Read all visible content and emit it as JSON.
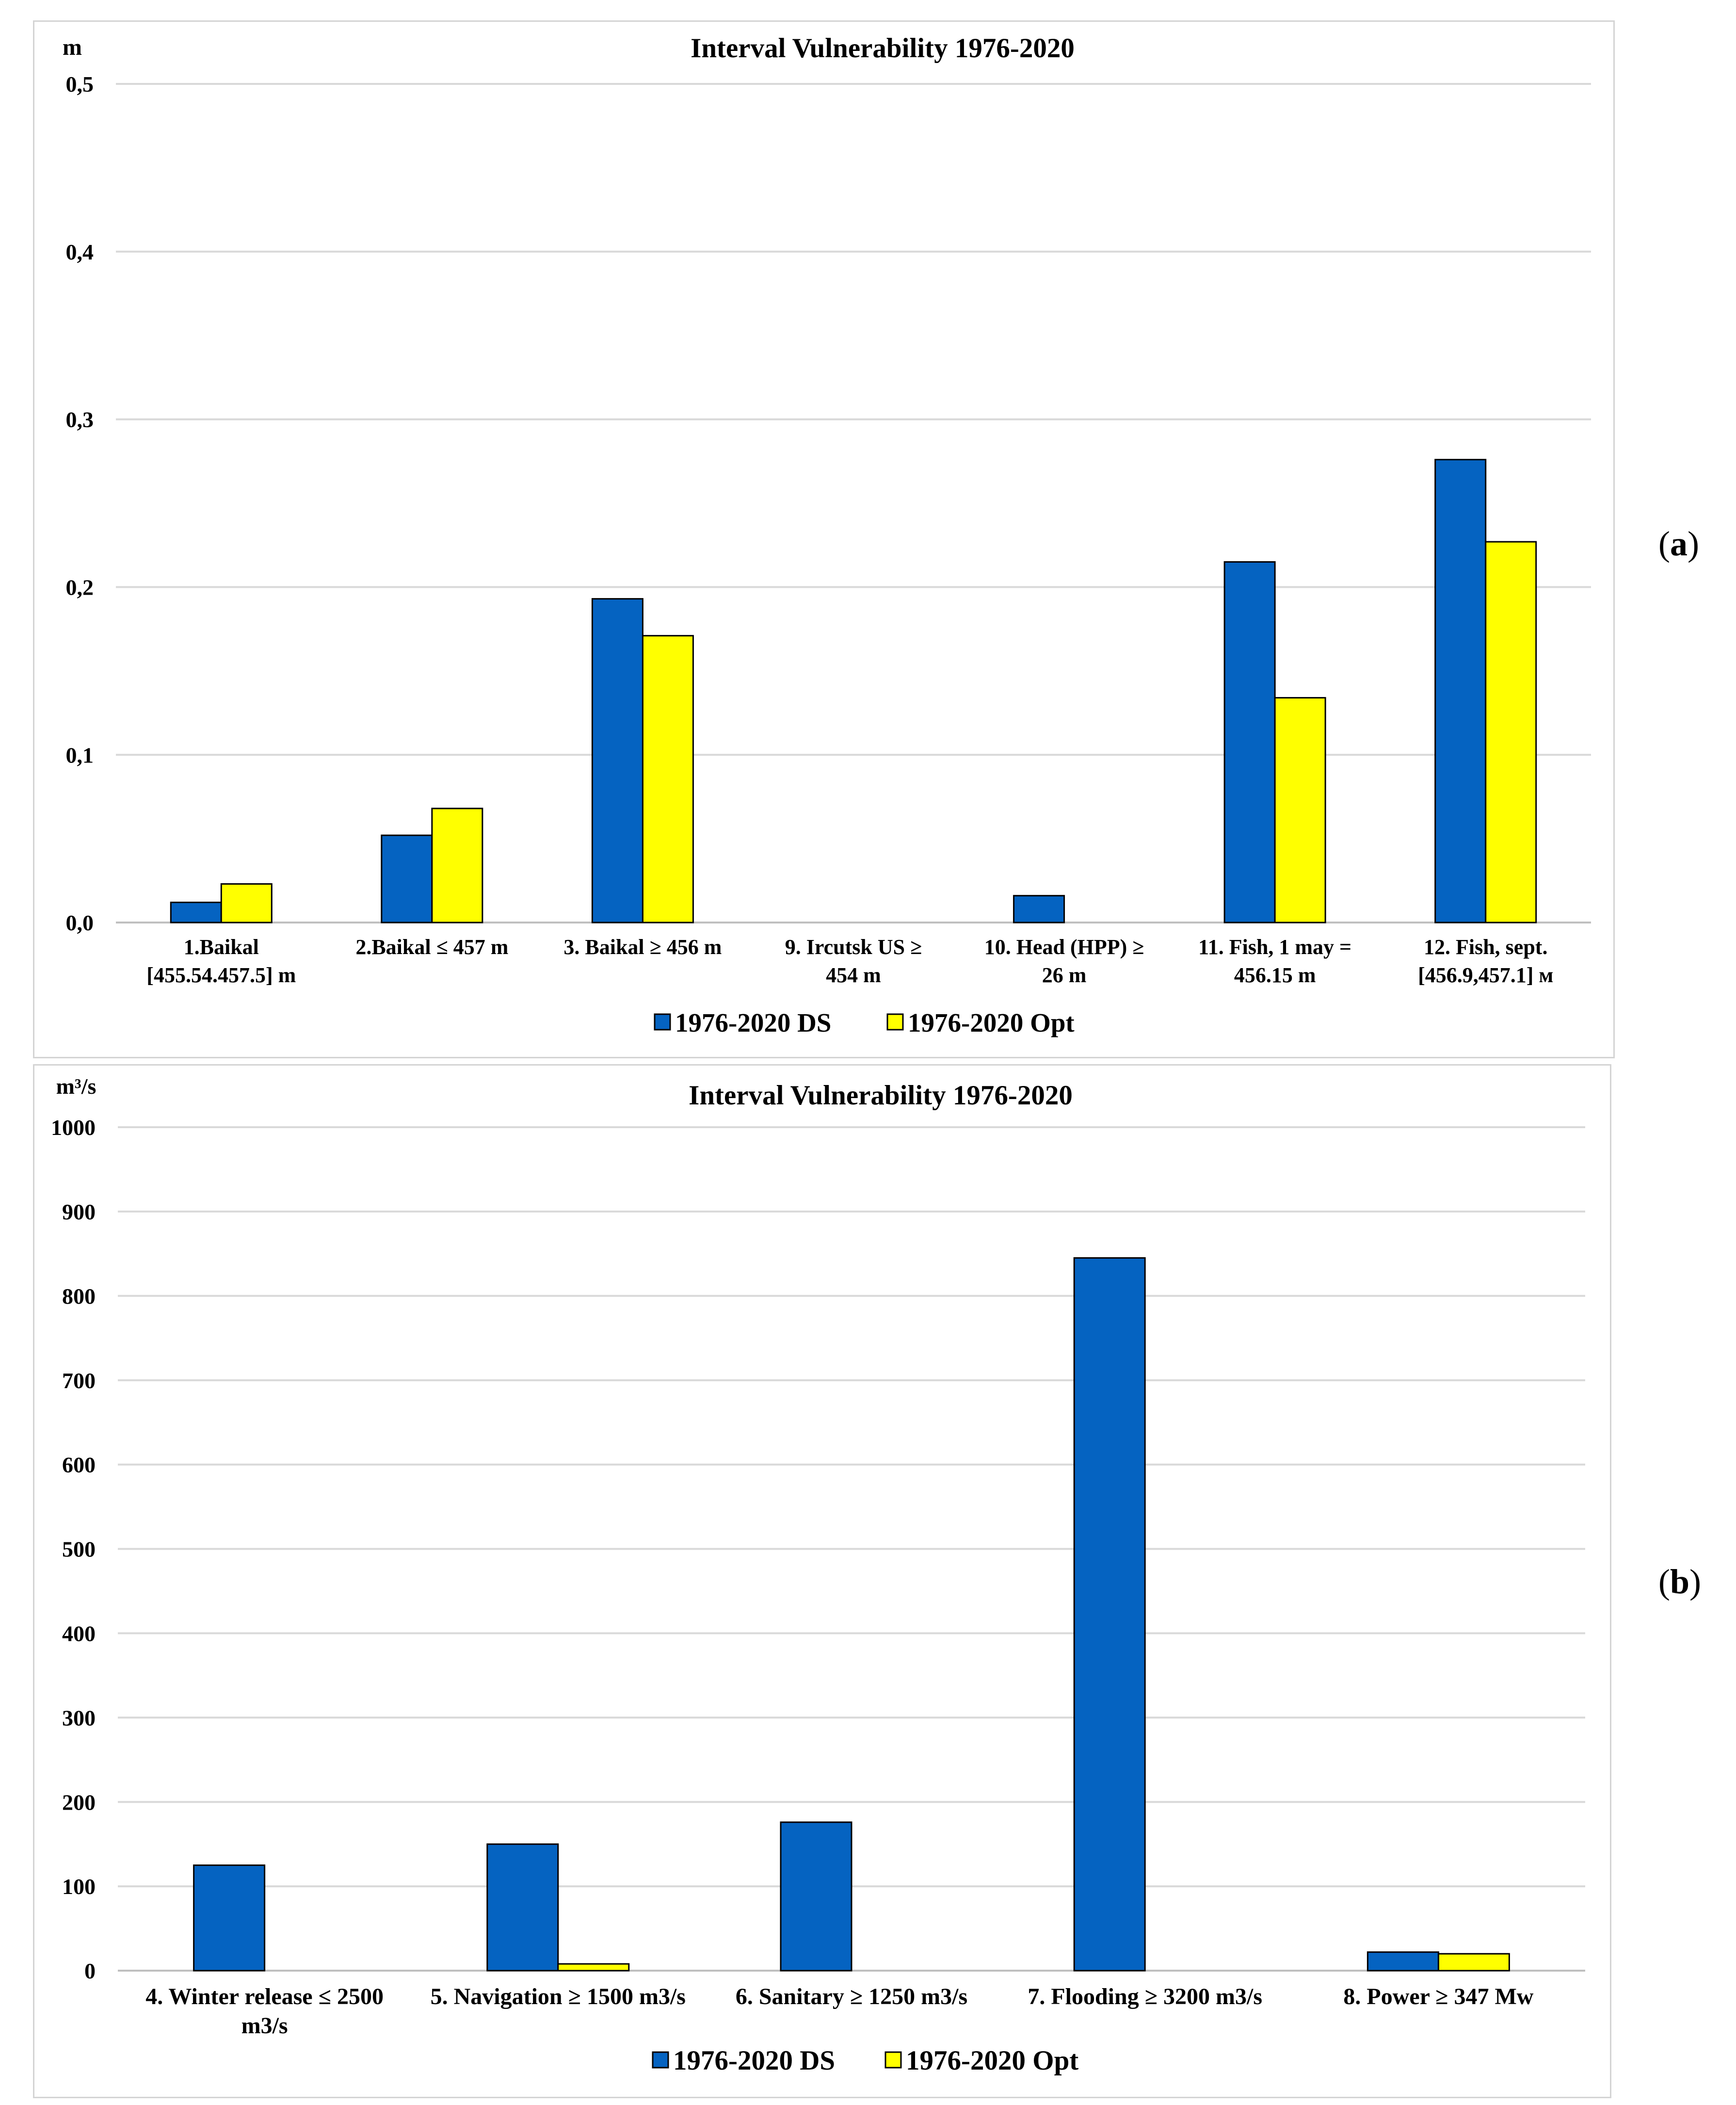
{
  "panel_labels": {
    "a": "a",
    "b": "b"
  },
  "chart_data": [
    {
      "type": "bar",
      "title": "Interval Vulnerability 1976-2020",
      "ylabel": "m",
      "ylim": [
        0,
        0.5
      ],
      "yticks": [
        "0,0",
        "0,1",
        "0,2",
        "0,3",
        "0,4",
        "0,5"
      ],
      "grid": true,
      "legend_position": "bottom",
      "categories": [
        [
          "1.Baikal",
          "[455.54.457.5] m"
        ],
        [
          "2.Baikal ≤ 457 m"
        ],
        [
          "3. Baikal ≥ 456 m"
        ],
        [
          "9. Ircutsk US ≥",
          "454 m"
        ],
        [
          "10. Head  (HPP) ≥",
          "26 m"
        ],
        [
          "11. Fish, 1 may =",
          "456.15 m"
        ],
        [
          "12. Fish, sept.",
          "[456.9,457.1] м"
        ]
      ],
      "series": [
        {
          "name": "1976-2020 DS",
          "color": "#0563c1",
          "values": [
            0.012,
            0.052,
            0.193,
            0,
            0.016,
            0.215,
            0.276
          ]
        },
        {
          "name": "1976-2020 Opt",
          "color": "#ffff00",
          "values": [
            0.023,
            0.068,
            0.171,
            0,
            0,
            0.134,
            0.227
          ]
        }
      ]
    },
    {
      "type": "bar",
      "title": "Interval Vulnerability 1976-2020",
      "ylabel": "m³/s",
      "ylim": [
        0,
        1000
      ],
      "yticks": [
        "0",
        "100",
        "200",
        "300",
        "400",
        "500",
        "600",
        "700",
        "800",
        "900",
        "1000"
      ],
      "grid": true,
      "legend_position": "bottom",
      "categories": [
        [
          "4. Winter release ≤ 2500",
          "m3/s"
        ],
        [
          "5. Navigation ≥ 1500 m3/s"
        ],
        [
          "6. Sanitary ≥ 1250 m3/s"
        ],
        [
          "7. Flooding ≥ 3200 m3/s"
        ],
        [
          "8. Power ≥ 347 Mw"
        ]
      ],
      "series": [
        {
          "name": "1976-2020 DS",
          "color": "#0563c1",
          "values": [
            125,
            150,
            176,
            845,
            22
          ]
        },
        {
          "name": "1976-2020 Opt",
          "color": "#ffff00",
          "values": [
            0,
            8,
            0,
            0,
            20
          ]
        }
      ]
    }
  ]
}
